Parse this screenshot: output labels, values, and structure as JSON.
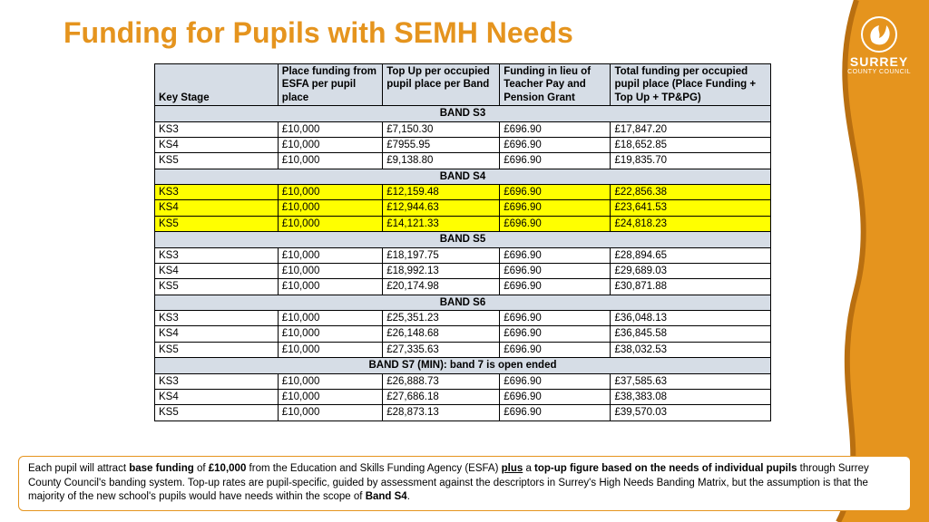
{
  "title": "Funding for Pupils with SEMH Needs",
  "logo": {
    "line1": "SURREY",
    "line2": "COUNTY COUNCIL"
  },
  "colors": {
    "accent": "#e5941e",
    "header_bg": "#d6dde6",
    "highlight_bg": "#ffff00",
    "border": "#000000",
    "page_bg": "#ffffff"
  },
  "table": {
    "columns": [
      "Key Stage",
      "Place funding from ESFA per pupil place",
      "Top Up per occupied pupil place per Band",
      "Funding in lieu of Teacher Pay and Pension Grant",
      "Total funding per occupied pupil place (Place Funding + Top Up + TP&PG)"
    ],
    "bands": [
      {
        "label": "BAND S3",
        "highlight": false,
        "rows": [
          [
            "KS3",
            "£10,000",
            "£7,150.30",
            "£696.90",
            "£17,847.20"
          ],
          [
            "KS4",
            "£10,000",
            "£7955.95",
            "£696.90",
            "£18,652.85"
          ],
          [
            "KS5",
            "£10,000",
            "£9,138.80",
            "£696.90",
            "£19,835.70"
          ]
        ]
      },
      {
        "label": "BAND S4",
        "highlight": true,
        "rows": [
          [
            "KS3",
            "£10,000",
            "£12,159.48",
            "£696.90",
            "£22,856.38"
          ],
          [
            "KS4",
            "£10,000",
            "£12,944.63",
            "£696.90",
            "£23,641.53"
          ],
          [
            "KS5",
            "£10,000",
            "£14,121.33",
            "£696.90",
            "£24,818.23"
          ]
        ]
      },
      {
        "label": "BAND S5",
        "highlight": false,
        "rows": [
          [
            "KS3",
            "£10,000",
            "£18,197.75",
            "£696.90",
            "£28,894.65"
          ],
          [
            "KS4",
            "£10,000",
            "£18,992.13",
            "£696.90",
            "£29,689.03"
          ],
          [
            "KS5",
            "£10,000",
            "£20,174.98",
            "£696.90",
            "£30,871.88"
          ]
        ]
      },
      {
        "label": "BAND S6",
        "highlight": false,
        "rows": [
          [
            "KS3",
            "£10,000",
            "£25,351.23",
            "£696.90",
            "£36,048.13"
          ],
          [
            "KS4",
            "£10,000",
            "£26,148.68",
            "£696.90",
            "£36,845.58"
          ],
          [
            "KS5",
            "£10,000",
            "£27,335.63",
            "£696.90",
            "£38,032.53"
          ]
        ]
      },
      {
        "label": "BAND S7 (MIN): band 7 is open ended",
        "highlight": false,
        "rows": [
          [
            "KS3",
            "£10,000",
            "£26,888.73",
            "£696.90",
            "£37,585.63"
          ],
          [
            "KS4",
            "£10,000",
            "£27,686.18",
            "£696.90",
            "£38,383.08"
          ],
          [
            "KS5",
            "£10,000",
            "£28,873.13",
            "£696.90",
            "£39,570.03"
          ]
        ]
      }
    ]
  },
  "footnote": {
    "parts": [
      {
        "t": "Each pupil will attract "
      },
      {
        "t": "base funding",
        "b": true
      },
      {
        "t": " of "
      },
      {
        "t": "£10,000",
        "b": true
      },
      {
        "t": " from the Education and Skills Funding Agency (ESFA) "
      },
      {
        "t": "plus",
        "b": true,
        "u": true
      },
      {
        "t": " a "
      },
      {
        "t": "top-up figure based on the needs of individual pupils",
        "b": true
      },
      {
        "t": " through Surrey County Council's banding system. Top-up rates are pupil-specific, guided by assessment against the descriptors in Surrey's High Needs Banding Matrix, but the assumption is that the majority of the new school's pupils would have needs within the scope of "
      },
      {
        "t": "Band S4",
        "b": true
      },
      {
        "t": "."
      }
    ]
  }
}
